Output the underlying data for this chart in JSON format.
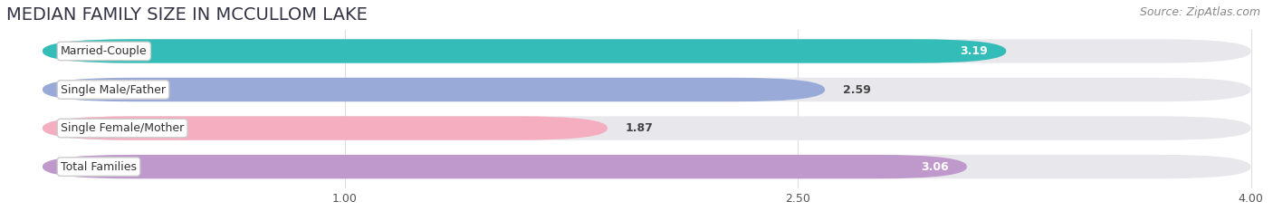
{
  "title": "MEDIAN FAMILY SIZE IN MCCULLOM LAKE",
  "source": "Source: ZipAtlas.com",
  "categories": [
    "Married-Couple",
    "Single Male/Father",
    "Single Female/Mother",
    "Total Families"
  ],
  "values": [
    3.19,
    2.59,
    1.87,
    3.06
  ],
  "bar_colors": [
    "#34bdb8",
    "#99aad9",
    "#f4aec0",
    "#c099cc"
  ],
  "bar_bg_color": "#e8e8ec",
  "xlim_min": 0.0,
  "xlim_max": 4.0,
  "xticks": [
    1.0,
    2.5,
    4.0
  ],
  "xtick_labels": [
    "1.00",
    "2.50",
    "4.00"
  ],
  "title_fontsize": 14,
  "source_fontsize": 9,
  "bar_label_fontsize": 9,
  "value_label_fontsize": 9,
  "figsize": [
    14.06,
    2.33
  ],
  "dpi": 100,
  "bg_color": "#ffffff"
}
